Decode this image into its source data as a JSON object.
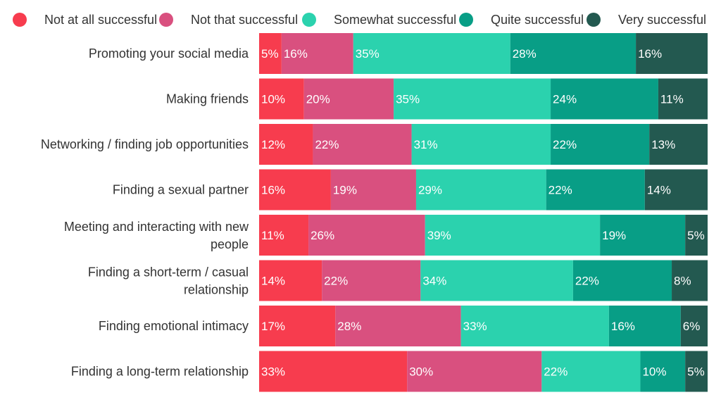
{
  "chart_data": {
    "type": "bar",
    "orientation": "horizontal",
    "stacked": true,
    "percent_stacked": true,
    "legend_position": "top",
    "grid": false,
    "categories": [
      "Promoting your social media",
      "Making friends",
      "Networking / finding job opportunities",
      "Finding a sexual partner",
      "Meeting and interacting with new people",
      "Finding a short-term / casual relationship",
      "Finding emotional intimacy",
      "Finding a long-term relationship"
    ],
    "category_lines": [
      [
        "Promoting your social media"
      ],
      [
        "Making friends"
      ],
      [
        "Networking / finding job opportunities"
      ],
      [
        "Finding a sexual partner"
      ],
      [
        "Meeting and interacting with new",
        "people"
      ],
      [
        "Finding a short-term / casual",
        "relationship"
      ],
      [
        "Finding emotional intimacy"
      ],
      [
        "Finding a long-term relationship"
      ]
    ],
    "series": [
      {
        "name": "Not at all successful",
        "color": "#f73c4e",
        "values": [
          5,
          10,
          12,
          16,
          11,
          14,
          17,
          33
        ]
      },
      {
        "name": "Not that successful",
        "color": "#d9507f",
        "values": [
          16,
          20,
          22,
          19,
          26,
          22,
          28,
          30
        ]
      },
      {
        "name": "Somewhat successful",
        "color": "#2bd2ae",
        "values": [
          35,
          35,
          31,
          29,
          39,
          34,
          33,
          22
        ]
      },
      {
        "name": "Quite successful",
        "color": "#089e86",
        "values": [
          28,
          24,
          22,
          22,
          19,
          22,
          16,
          10
        ]
      },
      {
        "name": "Very successful",
        "color": "#235950",
        "values": [
          16,
          11,
          13,
          14,
          5,
          8,
          6,
          5
        ]
      }
    ],
    "value_suffix": "%"
  }
}
